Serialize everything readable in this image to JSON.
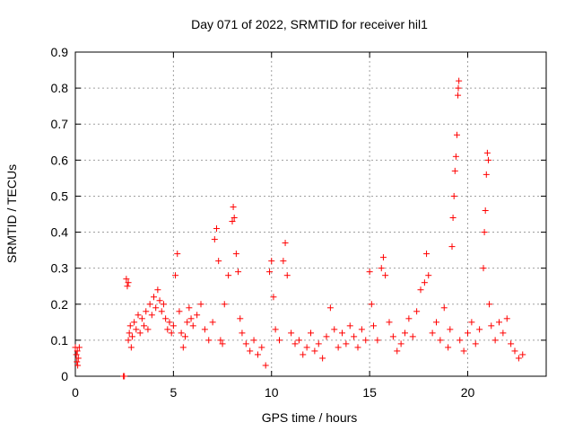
{
  "chart_data": {
    "type": "scatter",
    "title": "Day 071 of 2022, SRMTID for receiver hil1",
    "xlabel": "GPS time / hours",
    "ylabel": "SRMTID / TECUs",
    "xlim": [
      0,
      24
    ],
    "ylim": [
      0,
      0.9
    ],
    "xticks": [
      0,
      5,
      10,
      15,
      20
    ],
    "xtick_labels": [
      "0",
      "5",
      "10",
      "15",
      "20"
    ],
    "yticks": [
      0,
      0.1,
      0.2,
      0.3,
      0.4,
      0.5,
      0.6,
      0.7,
      0.8,
      0.9
    ],
    "ytick_labels": [
      "0",
      "0.1",
      "0.2",
      "0.3",
      "0.4",
      "0.5",
      "0.6",
      "0.7",
      "0.8",
      "0.9"
    ],
    "grid": true,
    "marker": "plus",
    "color": "#ff0000",
    "series": [
      {
        "name": "SRMTID",
        "points": [
          [
            0.0,
            0.08
          ],
          [
            0.05,
            0.06
          ],
          [
            0.08,
            0.04
          ],
          [
            0.1,
            0.07
          ],
          [
            0.12,
            0.03
          ],
          [
            0.15,
            0.05
          ],
          [
            0.2,
            0.08
          ],
          [
            2.45,
            0.0
          ],
          [
            2.5,
            0.0
          ],
          [
            2.6,
            0.27
          ],
          [
            2.65,
            0.25
          ],
          [
            2.7,
            0.26
          ],
          [
            2.7,
            0.1
          ],
          [
            2.75,
            0.12
          ],
          [
            2.8,
            0.14
          ],
          [
            2.85,
            0.08
          ],
          [
            2.9,
            0.11
          ],
          [
            3.0,
            0.15
          ],
          [
            3.1,
            0.13
          ],
          [
            3.2,
            0.17
          ],
          [
            3.3,
            0.12
          ],
          [
            3.4,
            0.16
          ],
          [
            3.5,
            0.14
          ],
          [
            3.6,
            0.18
          ],
          [
            3.7,
            0.13
          ],
          [
            3.8,
            0.2
          ],
          [
            3.9,
            0.17
          ],
          [
            4.0,
            0.22
          ],
          [
            4.1,
            0.19
          ],
          [
            4.2,
            0.24
          ],
          [
            4.3,
            0.21
          ],
          [
            4.4,
            0.18
          ],
          [
            4.5,
            0.2
          ],
          [
            4.6,
            0.16
          ],
          [
            4.7,
            0.13
          ],
          [
            4.8,
            0.15
          ],
          [
            4.9,
            0.12
          ],
          [
            5.0,
            0.14
          ],
          [
            5.1,
            0.28
          ],
          [
            5.2,
            0.34
          ],
          [
            5.3,
            0.18
          ],
          [
            5.4,
            0.12
          ],
          [
            5.5,
            0.08
          ],
          [
            5.6,
            0.11
          ],
          [
            5.7,
            0.15
          ],
          [
            5.8,
            0.19
          ],
          [
            5.9,
            0.16
          ],
          [
            6.0,
            0.14
          ],
          [
            6.2,
            0.17
          ],
          [
            6.4,
            0.2
          ],
          [
            6.6,
            0.13
          ],
          [
            6.8,
            0.1
          ],
          [
            7.0,
            0.15
          ],
          [
            7.1,
            0.38
          ],
          [
            7.2,
            0.41
          ],
          [
            7.3,
            0.32
          ],
          [
            7.4,
            0.1
          ],
          [
            7.5,
            0.09
          ],
          [
            7.6,
            0.2
          ],
          [
            7.8,
            0.28
          ],
          [
            8.0,
            0.43
          ],
          [
            8.05,
            0.47
          ],
          [
            8.1,
            0.44
          ],
          [
            8.2,
            0.34
          ],
          [
            8.3,
            0.29
          ],
          [
            8.4,
            0.16
          ],
          [
            8.5,
            0.12
          ],
          [
            8.7,
            0.09
          ],
          [
            8.9,
            0.07
          ],
          [
            9.1,
            0.1
          ],
          [
            9.3,
            0.06
          ],
          [
            9.5,
            0.08
          ],
          [
            9.7,
            0.03
          ],
          [
            9.9,
            0.29
          ],
          [
            10.0,
            0.32
          ],
          [
            10.1,
            0.22
          ],
          [
            10.2,
            0.13
          ],
          [
            10.4,
            0.1
          ],
          [
            10.6,
            0.32
          ],
          [
            10.7,
            0.37
          ],
          [
            10.8,
            0.28
          ],
          [
            11.0,
            0.12
          ],
          [
            11.2,
            0.09
          ],
          [
            11.4,
            0.1
          ],
          [
            11.6,
            0.06
          ],
          [
            11.8,
            0.08
          ],
          [
            12.0,
            0.12
          ],
          [
            12.2,
            0.07
          ],
          [
            12.4,
            0.09
          ],
          [
            12.6,
            0.05
          ],
          [
            12.8,
            0.11
          ],
          [
            13.0,
            0.19
          ],
          [
            13.2,
            0.13
          ],
          [
            13.4,
            0.08
          ],
          [
            13.6,
            0.12
          ],
          [
            13.8,
            0.09
          ],
          [
            14.0,
            0.14
          ],
          [
            14.2,
            0.11
          ],
          [
            14.4,
            0.08
          ],
          [
            14.6,
            0.13
          ],
          [
            14.8,
            0.1
          ],
          [
            15.0,
            0.29
          ],
          [
            15.1,
            0.2
          ],
          [
            15.2,
            0.14
          ],
          [
            15.4,
            0.1
          ],
          [
            15.6,
            0.3
          ],
          [
            15.7,
            0.33
          ],
          [
            15.8,
            0.28
          ],
          [
            16.0,
            0.15
          ],
          [
            16.2,
            0.11
          ],
          [
            16.4,
            0.07
          ],
          [
            16.6,
            0.09
          ],
          [
            16.8,
            0.12
          ],
          [
            17.0,
            0.16
          ],
          [
            17.2,
            0.11
          ],
          [
            17.4,
            0.18
          ],
          [
            17.6,
            0.24
          ],
          [
            17.8,
            0.26
          ],
          [
            17.9,
            0.34
          ],
          [
            18.0,
            0.28
          ],
          [
            18.2,
            0.12
          ],
          [
            18.4,
            0.15
          ],
          [
            18.6,
            0.1
          ],
          [
            18.8,
            0.19
          ],
          [
            19.0,
            0.08
          ],
          [
            19.1,
            0.13
          ],
          [
            19.2,
            0.36
          ],
          [
            19.25,
            0.44
          ],
          [
            19.3,
            0.5
          ],
          [
            19.35,
            0.57
          ],
          [
            19.4,
            0.61
          ],
          [
            19.45,
            0.67
          ],
          [
            19.5,
            0.78
          ],
          [
            19.52,
            0.8
          ],
          [
            19.55,
            0.82
          ],
          [
            19.6,
            0.1
          ],
          [
            19.8,
            0.07
          ],
          [
            20.0,
            0.12
          ],
          [
            20.2,
            0.15
          ],
          [
            20.4,
            0.09
          ],
          [
            20.6,
            0.13
          ],
          [
            20.8,
            0.3
          ],
          [
            20.85,
            0.4
          ],
          [
            20.9,
            0.46
          ],
          [
            20.95,
            0.56
          ],
          [
            21.0,
            0.62
          ],
          [
            21.05,
            0.6
          ],
          [
            21.1,
            0.2
          ],
          [
            21.2,
            0.14
          ],
          [
            21.4,
            0.1
          ],
          [
            21.6,
            0.15
          ],
          [
            21.8,
            0.12
          ],
          [
            22.0,
            0.16
          ],
          [
            22.2,
            0.09
          ],
          [
            22.4,
            0.07
          ],
          [
            22.6,
            0.05
          ],
          [
            22.8,
            0.06
          ]
        ]
      }
    ]
  }
}
